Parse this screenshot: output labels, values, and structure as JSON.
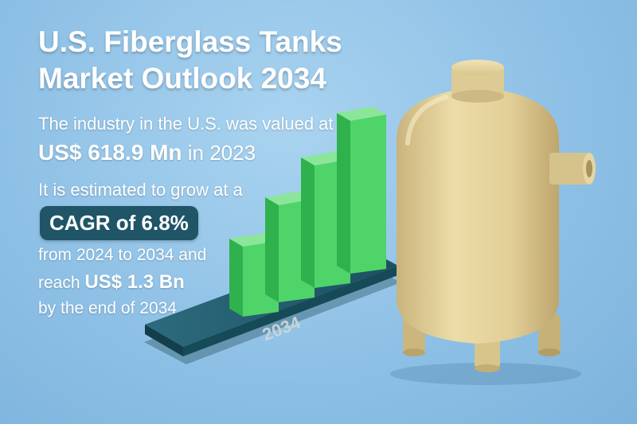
{
  "title_line1": "U.S. Fiberglass Tanks",
  "title_line2": "Market Outlook 2034",
  "line1": "The industry in the U.S. was valued at",
  "value_2023_amount": "US$ 618.9 Mn",
  "value_2023_suffix": "in 2023",
  "line3": "It is estimated to grow at a",
  "cagr_badge": "CAGR of 6.8%",
  "line4": "from 2024 to 2034 and",
  "line5_prefix": "reach",
  "value_2034_amount": "US$ 1.3 Bn",
  "line6": "by the end of 2034",
  "platform_label": "2034",
  "colors": {
    "background": "#8fc1e6",
    "bar_green": "#4fd46a",
    "platform": "#1f5566",
    "tank": "#e3d099",
    "text": "#ffffff"
  },
  "icons": [
    "bar-chart-illustration",
    "fiberglass-tank-illustration"
  ]
}
